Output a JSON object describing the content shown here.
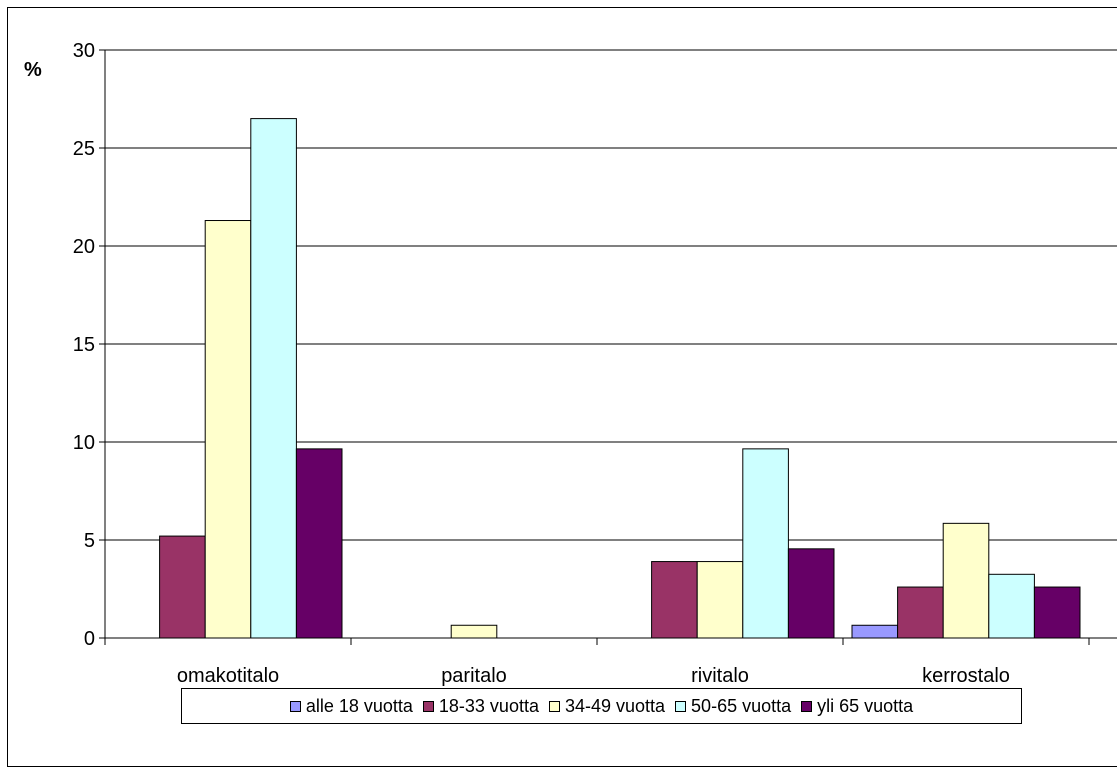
{
  "chart_data": {
    "type": "bar",
    "title": "",
    "ylabel": "%",
    "xlabel": "",
    "ylim": [
      0,
      30
    ],
    "yticks": [
      0,
      5,
      10,
      15,
      20,
      25,
      30
    ],
    "grid": true,
    "legend_position": "bottom",
    "categories": [
      "omakotitalo",
      "paritalo",
      "rivitalo",
      "kerrostalo"
    ],
    "series": [
      {
        "name": "alle 18 vuotta",
        "color": "#9999ff",
        "values": [
          0,
          0,
          0,
          0.65
        ]
      },
      {
        "name": "18-33 vuotta",
        "color": "#993366",
        "values": [
          5.2,
          0,
          3.9,
          2.6
        ]
      },
      {
        "name": "34-49 vuotta",
        "color": "#ffffcc",
        "values": [
          21.3,
          0.65,
          3.9,
          5.85
        ]
      },
      {
        "name": "50-65 vuotta",
        "color": "#ccffff",
        "values": [
          26.5,
          0,
          9.65,
          3.25
        ]
      },
      {
        "name": "yli 65 vuotta",
        "color": "#660066",
        "values": [
          9.65,
          0,
          4.55,
          2.6
        ]
      }
    ]
  }
}
